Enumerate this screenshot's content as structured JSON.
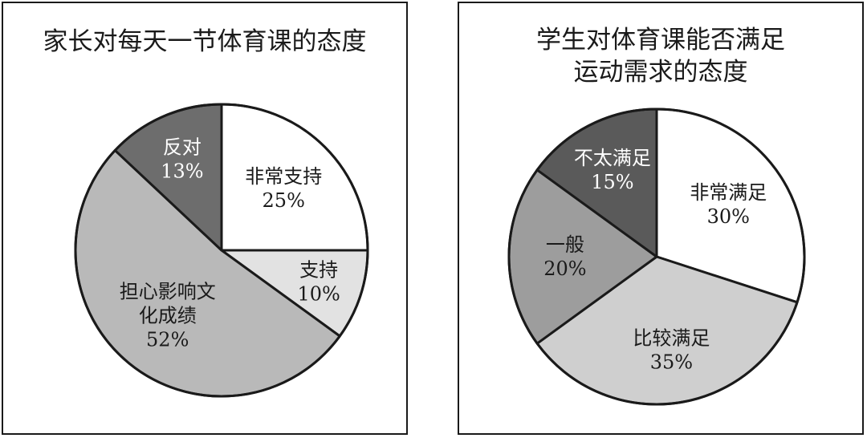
{
  "chart_data": [
    {
      "type": "pie",
      "title": [
        "家长对每天一节体育课的态度"
      ],
      "slices": [
        {
          "label": [
            "非常支持"
          ],
          "value": 25,
          "value_label": "25%",
          "color": "#ffffff",
          "text_color": "#1a1a1a"
        },
        {
          "label": [
            "支持"
          ],
          "value": 10,
          "value_label": "10%",
          "color": "#e2e2e2",
          "text_color": "#1a1a1a"
        },
        {
          "label": [
            "担心影响文",
            "化成绩"
          ],
          "value": 52,
          "value_label": "52%",
          "color": "#b9b9b9",
          "text_color": "#1a1a1a"
        },
        {
          "label": [
            "反对"
          ],
          "value": 13,
          "value_label": "13%",
          "color": "#6d6d6d",
          "text_color": "#ffffff"
        }
      ]
    },
    {
      "type": "pie",
      "title": [
        "学生对体育课能否满足",
        "运动需求的态度"
      ],
      "slices": [
        {
          "label": [
            "非常满足"
          ],
          "value": 30,
          "value_label": "30%",
          "color": "#ffffff",
          "text_color": "#1a1a1a"
        },
        {
          "label": [
            "比较满足"
          ],
          "value": 35,
          "value_label": "35%",
          "color": "#cfcfcf",
          "text_color": "#1a1a1a"
        },
        {
          "label": [
            "一般"
          ],
          "value": 20,
          "value_label": "20%",
          "color": "#9d9d9d",
          "text_color": "#1a1a1a"
        },
        {
          "label": [
            "不太满足"
          ],
          "value": 15,
          "value_label": "15%",
          "color": "#5a5a5a",
          "text_color": "#ffffff"
        }
      ]
    }
  ]
}
